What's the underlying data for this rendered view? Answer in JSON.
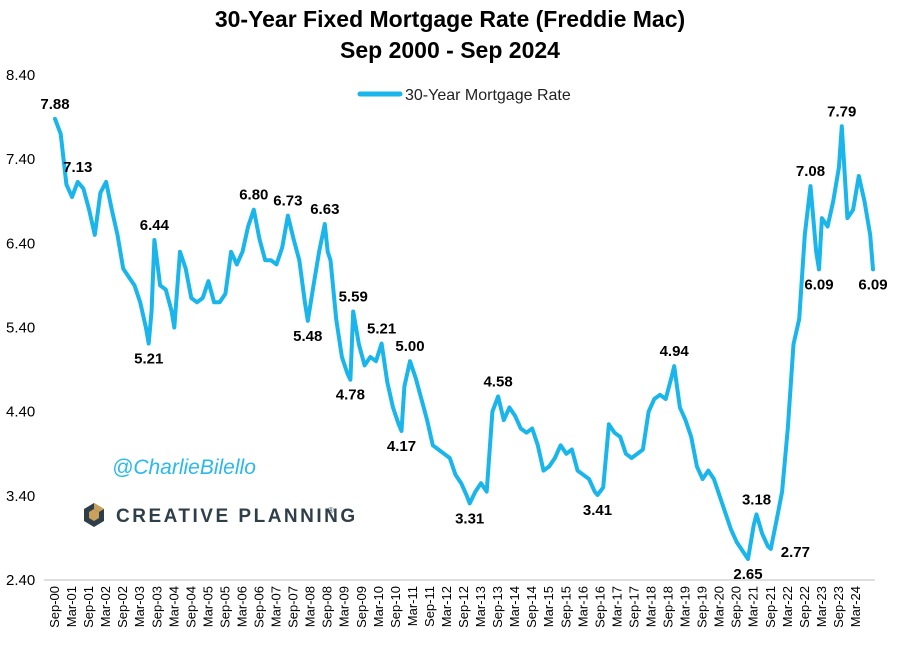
{
  "chart_data": {
    "type": "line",
    "title": "30-Year Fixed Mortgage Rate (Freddie Mac)",
    "subtitle": "Sep 2000 - Sep 2024",
    "ylim": [
      2.4,
      8.4
    ],
    "yticks": [
      "8.40",
      "7.40",
      "6.40",
      "5.40",
      "4.40",
      "3.40",
      "2.40"
    ],
    "x_tick_labels": [
      "Sep-00",
      "Mar-01",
      "Sep-01",
      "Mar-02",
      "Sep-02",
      "Mar-03",
      "Sep-03",
      "Mar-04",
      "Sep-04",
      "Mar-05",
      "Sep-05",
      "Mar-06",
      "Sep-06",
      "Mar-07",
      "Sep-07",
      "Mar-08",
      "Sep-08",
      "Mar-09",
      "Sep-09",
      "Mar-10",
      "Sep-10",
      "Mar-11",
      "Sep-11",
      "Mar-12",
      "Sep-12",
      "Mar-13",
      "Sep-13",
      "Mar-14",
      "Sep-14",
      "Mar-15",
      "Sep-15",
      "Mar-16",
      "Sep-16",
      "Mar-17",
      "Sep-17",
      "Mar-18",
      "Sep-18",
      "Mar-19",
      "Sep-19",
      "Mar-20",
      "Sep-20",
      "Mar-21",
      "Sep-21",
      "Mar-22",
      "Sep-22",
      "Mar-23",
      "Sep-23",
      "Mar-24"
    ],
    "legend": "top-center",
    "grid": false,
    "color": "#1ab5ea",
    "series": [
      {
        "name": "30-Year Mortgage Rate",
        "points": [
          [
            "2000-09",
            7.88
          ],
          [
            "2000-11",
            7.7
          ],
          [
            "2001-01",
            7.1
          ],
          [
            "2001-03",
            6.95
          ],
          [
            "2001-05",
            7.13
          ],
          [
            "2001-07",
            7.05
          ],
          [
            "2001-09",
            6.8
          ],
          [
            "2001-11",
            6.5
          ],
          [
            "2002-01",
            7.0
          ],
          [
            "2002-03",
            7.13
          ],
          [
            "2002-05",
            6.8
          ],
          [
            "2002-07",
            6.5
          ],
          [
            "2002-09",
            6.1
          ],
          [
            "2002-11",
            6.0
          ],
          [
            "2003-01",
            5.9
          ],
          [
            "2003-03",
            5.7
          ],
          [
            "2003-05",
            5.4
          ],
          [
            "2003-06",
            5.21
          ],
          [
            "2003-07",
            5.6
          ],
          [
            "2003-08",
            6.44
          ],
          [
            "2003-10",
            5.9
          ],
          [
            "2003-12",
            5.85
          ],
          [
            "2004-02",
            5.6
          ],
          [
            "2004-03",
            5.4
          ],
          [
            "2004-05",
            6.3
          ],
          [
            "2004-07",
            6.1
          ],
          [
            "2004-09",
            5.75
          ],
          [
            "2004-11",
            5.7
          ],
          [
            "2005-01",
            5.75
          ],
          [
            "2005-03",
            5.95
          ],
          [
            "2005-05",
            5.7
          ],
          [
            "2005-07",
            5.7
          ],
          [
            "2005-09",
            5.8
          ],
          [
            "2005-11",
            6.3
          ],
          [
            "2006-01",
            6.15
          ],
          [
            "2006-03",
            6.3
          ],
          [
            "2006-05",
            6.6
          ],
          [
            "2006-07",
            6.8
          ],
          [
            "2006-09",
            6.45
          ],
          [
            "2006-11",
            6.2
          ],
          [
            "2007-01",
            6.2
          ],
          [
            "2007-03",
            6.15
          ],
          [
            "2007-05",
            6.35
          ],
          [
            "2007-07",
            6.73
          ],
          [
            "2007-09",
            6.45
          ],
          [
            "2007-11",
            6.2
          ],
          [
            "2008-01",
            5.7
          ],
          [
            "2008-02",
            5.48
          ],
          [
            "2008-04",
            5.9
          ],
          [
            "2008-06",
            6.3
          ],
          [
            "2008-08",
            6.63
          ],
          [
            "2008-09",
            6.3
          ],
          [
            "2008-10",
            6.2
          ],
          [
            "2008-12",
            5.5
          ],
          [
            "2009-02",
            5.05
          ],
          [
            "2009-04",
            4.85
          ],
          [
            "2009-05",
            4.78
          ],
          [
            "2009-06",
            5.59
          ],
          [
            "2009-08",
            5.2
          ],
          [
            "2009-10",
            4.95
          ],
          [
            "2009-12",
            5.05
          ],
          [
            "2010-02",
            5.0
          ],
          [
            "2010-04",
            5.21
          ],
          [
            "2010-06",
            4.75
          ],
          [
            "2010-08",
            4.45
          ],
          [
            "2010-10",
            4.25
          ],
          [
            "2010-11",
            4.17
          ],
          [
            "2010-12",
            4.7
          ],
          [
            "2011-02",
            5.0
          ],
          [
            "2011-04",
            4.8
          ],
          [
            "2011-06",
            4.55
          ],
          [
            "2011-08",
            4.3
          ],
          [
            "2011-10",
            4.0
          ],
          [
            "2011-12",
            3.95
          ],
          [
            "2012-02",
            3.9
          ],
          [
            "2012-04",
            3.85
          ],
          [
            "2012-06",
            3.65
          ],
          [
            "2012-08",
            3.55
          ],
          [
            "2012-10",
            3.4
          ],
          [
            "2012-11",
            3.31
          ],
          [
            "2013-01",
            3.45
          ],
          [
            "2013-03",
            3.55
          ],
          [
            "2013-05",
            3.45
          ],
          [
            "2013-07",
            4.4
          ],
          [
            "2013-09",
            4.58
          ],
          [
            "2013-11",
            4.3
          ],
          [
            "2014-01",
            4.45
          ],
          [
            "2014-03",
            4.35
          ],
          [
            "2014-05",
            4.2
          ],
          [
            "2014-07",
            4.15
          ],
          [
            "2014-09",
            4.2
          ],
          [
            "2014-11",
            4.0
          ],
          [
            "2015-01",
            3.7
          ],
          [
            "2015-03",
            3.75
          ],
          [
            "2015-05",
            3.85
          ],
          [
            "2015-07",
            4.0
          ],
          [
            "2015-09",
            3.9
          ],
          [
            "2015-11",
            3.95
          ],
          [
            "2016-01",
            3.7
          ],
          [
            "2016-03",
            3.65
          ],
          [
            "2016-05",
            3.6
          ],
          [
            "2016-07",
            3.45
          ],
          [
            "2016-08",
            3.41
          ],
          [
            "2016-10",
            3.5
          ],
          [
            "2016-12",
            4.25
          ],
          [
            "2017-02",
            4.15
          ],
          [
            "2017-04",
            4.1
          ],
          [
            "2017-06",
            3.9
          ],
          [
            "2017-08",
            3.85
          ],
          [
            "2017-10",
            3.9
          ],
          [
            "2017-12",
            3.95
          ],
          [
            "2018-02",
            4.4
          ],
          [
            "2018-04",
            4.55
          ],
          [
            "2018-06",
            4.6
          ],
          [
            "2018-08",
            4.55
          ],
          [
            "2018-10",
            4.8
          ],
          [
            "2018-11",
            4.94
          ],
          [
            "2019-01",
            4.45
          ],
          [
            "2019-03",
            4.3
          ],
          [
            "2019-05",
            4.1
          ],
          [
            "2019-07",
            3.75
          ],
          [
            "2019-09",
            3.6
          ],
          [
            "2019-11",
            3.7
          ],
          [
            "2020-01",
            3.6
          ],
          [
            "2020-03",
            3.4
          ],
          [
            "2020-05",
            3.2
          ],
          [
            "2020-07",
            3.0
          ],
          [
            "2020-09",
            2.85
          ],
          [
            "2020-11",
            2.75
          ],
          [
            "2021-01",
            2.65
          ],
          [
            "2021-03",
            3.05
          ],
          [
            "2021-04",
            3.18
          ],
          [
            "2021-06",
            2.95
          ],
          [
            "2021-08",
            2.8
          ],
          [
            "2021-09",
            2.77
          ],
          [
            "2021-11",
            3.1
          ],
          [
            "2022-01",
            3.45
          ],
          [
            "2022-03",
            4.2
          ],
          [
            "2022-05",
            5.2
          ],
          [
            "2022-07",
            5.5
          ],
          [
            "2022-09",
            6.5
          ],
          [
            "2022-11",
            7.08
          ],
          [
            "2023-01",
            6.3
          ],
          [
            "2023-02",
            6.09
          ],
          [
            "2023-03",
            6.7
          ],
          [
            "2023-05",
            6.6
          ],
          [
            "2023-07",
            6.9
          ],
          [
            "2023-09",
            7.3
          ],
          [
            "2023-10",
            7.79
          ],
          [
            "2023-12",
            6.7
          ],
          [
            "2024-02",
            6.8
          ],
          [
            "2024-04",
            7.2
          ],
          [
            "2024-06",
            6.9
          ],
          [
            "2024-08",
            6.5
          ],
          [
            "2024-09",
            6.09
          ]
        ]
      }
    ],
    "annotations": [
      {
        "date": "2000-09",
        "value": "7.88",
        "pos": "above"
      },
      {
        "date": "2001-05",
        "value": "7.13",
        "pos": "above"
      },
      {
        "date": "2003-06",
        "value": "5.21",
        "pos": "below"
      },
      {
        "date": "2003-08",
        "value": "6.44",
        "pos": "above"
      },
      {
        "date": "2006-07",
        "value": "6.80",
        "pos": "above"
      },
      {
        "date": "2007-07",
        "value": "6.73",
        "pos": "above"
      },
      {
        "date": "2008-02",
        "value": "5.48",
        "pos": "below"
      },
      {
        "date": "2008-08",
        "value": "6.63",
        "pos": "above"
      },
      {
        "date": "2009-05",
        "value": "4.78",
        "pos": "below"
      },
      {
        "date": "2009-06",
        "value": "5.59",
        "pos": "above"
      },
      {
        "date": "2010-04",
        "value": "5.21",
        "pos": "above"
      },
      {
        "date": "2010-11",
        "value": "4.17",
        "pos": "below"
      },
      {
        "date": "2011-02",
        "value": "5.00",
        "pos": "above"
      },
      {
        "date": "2012-11",
        "value": "3.31",
        "pos": "below"
      },
      {
        "date": "2013-09",
        "value": "4.58",
        "pos": "above"
      },
      {
        "date": "2016-08",
        "value": "3.41",
        "pos": "below"
      },
      {
        "date": "2018-11",
        "value": "4.94",
        "pos": "above"
      },
      {
        "date": "2021-01",
        "value": "2.65",
        "pos": "below"
      },
      {
        "date": "2021-04",
        "value": "3.18",
        "pos": "above"
      },
      {
        "date": "2021-09",
        "value": "2.77",
        "pos": "below-right"
      },
      {
        "date": "2022-11",
        "value": "7.08",
        "pos": "above"
      },
      {
        "date": "2023-02",
        "value": "6.09",
        "pos": "below"
      },
      {
        "date": "2023-10",
        "value": "7.79",
        "pos": "above"
      },
      {
        "date": "2024-09",
        "value": "6.09",
        "pos": "below"
      }
    ]
  },
  "watermark": {
    "handle": "@CharlieBilello",
    "brand": "CREATIVE PLANNING",
    "brand_mark": "®"
  },
  "colors": {
    "line": "#1ab5ea",
    "handle": "#2ab8ee",
    "brand_text": "#2f3f4a",
    "brand_logo_gold": "#c9a15a"
  }
}
